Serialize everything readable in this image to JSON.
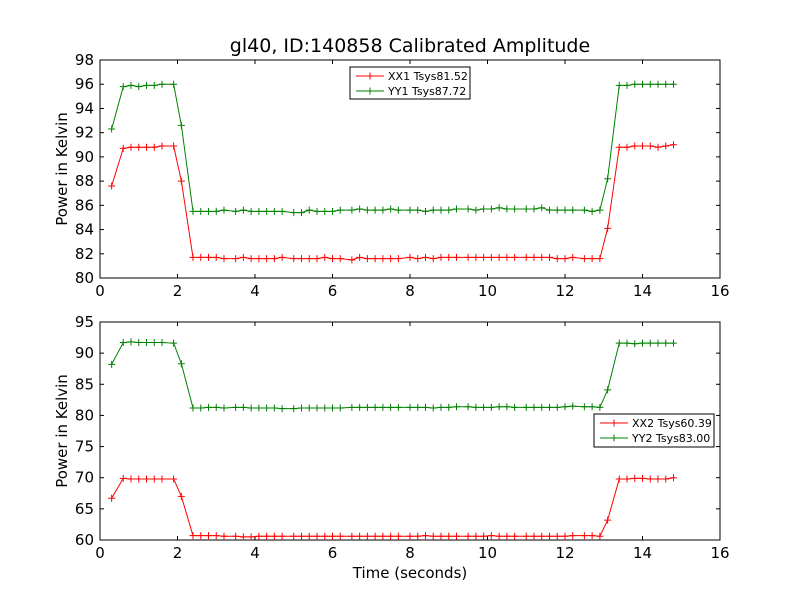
{
  "title": "gl40, ID:140858 Calibrated Amplitude",
  "chart_data": [
    {
      "type": "line",
      "ylabel": "Power in Kelvin",
      "xlabel": "",
      "xlim": [
        0,
        16
      ],
      "ylim": [
        80,
        98
      ],
      "xticks": [
        "0",
        "2",
        "4",
        "6",
        "8",
        "10",
        "12",
        "14",
        "16"
      ],
      "yticks": [
        "80",
        "82",
        "84",
        "86",
        "88",
        "90",
        "92",
        "94",
        "96",
        "98"
      ],
      "legend_position": "top-center",
      "x": [
        0.3,
        0.6,
        0.8,
        1.0,
        1.2,
        1.4,
        1.6,
        1.9,
        2.1,
        2.4,
        2.6,
        2.8,
        3.0,
        3.2,
        3.5,
        3.7,
        3.9,
        4.1,
        4.3,
        4.5,
        4.7,
        5.0,
        5.2,
        5.4,
        5.6,
        5.8,
        6.0,
        6.2,
        6.5,
        6.7,
        6.9,
        7.1,
        7.3,
        7.5,
        7.7,
        8.0,
        8.2,
        8.4,
        8.6,
        8.8,
        9.0,
        9.2,
        9.5,
        9.7,
        9.9,
        10.1,
        10.3,
        10.5,
        10.7,
        11.0,
        11.2,
        11.4,
        11.6,
        11.8,
        12.0,
        12.2,
        12.5,
        12.7,
        12.9,
        13.1,
        13.4,
        13.6,
        13.8,
        14.0,
        14.2,
        14.4,
        14.6,
        14.8
      ],
      "series": [
        {
          "name": "XX1 Tsys81.52",
          "color": "#ff0000",
          "values": [
            87.6,
            90.7,
            90.8,
            90.8,
            90.8,
            90.8,
            90.9,
            90.9,
            88.0,
            81.7,
            81.7,
            81.7,
            81.7,
            81.6,
            81.6,
            81.7,
            81.6,
            81.6,
            81.6,
            81.6,
            81.7,
            81.6,
            81.6,
            81.6,
            81.6,
            81.7,
            81.6,
            81.6,
            81.5,
            81.7,
            81.6,
            81.6,
            81.6,
            81.6,
            81.6,
            81.7,
            81.6,
            81.7,
            81.6,
            81.7,
            81.7,
            81.7,
            81.7,
            81.7,
            81.7,
            81.7,
            81.7,
            81.7,
            81.7,
            81.7,
            81.7,
            81.7,
            81.7,
            81.6,
            81.6,
            81.7,
            81.6,
            81.6,
            81.6,
            84.1,
            90.8,
            90.8,
            90.9,
            90.9,
            90.9,
            90.8,
            90.9,
            91.0
          ]
        },
        {
          "name": "YY1 Tsys87.72",
          "color": "#008000",
          "values": [
            92.3,
            95.8,
            95.9,
            95.8,
            95.9,
            95.9,
            96.0,
            96.0,
            92.6,
            85.5,
            85.5,
            85.5,
            85.5,
            85.6,
            85.5,
            85.6,
            85.5,
            85.5,
            85.5,
            85.5,
            85.5,
            85.4,
            85.4,
            85.6,
            85.5,
            85.5,
            85.5,
            85.6,
            85.6,
            85.7,
            85.6,
            85.6,
            85.6,
            85.7,
            85.6,
            85.6,
            85.6,
            85.5,
            85.6,
            85.6,
            85.6,
            85.7,
            85.7,
            85.6,
            85.7,
            85.7,
            85.8,
            85.7,
            85.7,
            85.7,
            85.7,
            85.8,
            85.6,
            85.6,
            85.6,
            85.6,
            85.6,
            85.5,
            85.6,
            88.2,
            95.9,
            95.9,
            96.0,
            96.0,
            96.0,
            96.0,
            96.0,
            96.0
          ]
        }
      ]
    },
    {
      "type": "line",
      "ylabel": "Power in Kelvin",
      "xlabel": "Time (seconds)",
      "xlim": [
        0,
        16
      ],
      "ylim": [
        60,
        95
      ],
      "xticks": [
        "0",
        "2",
        "4",
        "6",
        "8",
        "10",
        "12",
        "14",
        "16"
      ],
      "yticks": [
        "60",
        "65",
        "70",
        "75",
        "80",
        "85",
        "90",
        "95"
      ],
      "legend_position": "right",
      "x": [
        0.3,
        0.6,
        0.8,
        1.0,
        1.2,
        1.4,
        1.6,
        1.9,
        2.1,
        2.4,
        2.6,
        2.8,
        3.0,
        3.2,
        3.5,
        3.7,
        3.9,
        4.1,
        4.3,
        4.5,
        4.7,
        5.0,
        5.2,
        5.4,
        5.6,
        5.8,
        6.0,
        6.2,
        6.5,
        6.7,
        6.9,
        7.1,
        7.3,
        7.5,
        7.7,
        8.0,
        8.2,
        8.4,
        8.6,
        8.8,
        9.0,
        9.2,
        9.5,
        9.7,
        9.9,
        10.1,
        10.3,
        10.5,
        10.7,
        11.0,
        11.2,
        11.4,
        11.6,
        11.8,
        12.0,
        12.2,
        12.5,
        12.7,
        12.9,
        13.1,
        13.4,
        13.6,
        13.8,
        14.0,
        14.2,
        14.4,
        14.6,
        14.8
      ],
      "series": [
        {
          "name": "XX2 Tsys60.39",
          "color": "#ff0000",
          "values": [
            66.7,
            69.9,
            69.8,
            69.8,
            69.8,
            69.8,
            69.8,
            69.8,
            67.0,
            60.7,
            60.7,
            60.7,
            60.7,
            60.6,
            60.6,
            60.5,
            60.5,
            60.6,
            60.6,
            60.6,
            60.6,
            60.6,
            60.6,
            60.6,
            60.6,
            60.6,
            60.6,
            60.6,
            60.6,
            60.6,
            60.6,
            60.6,
            60.6,
            60.6,
            60.6,
            60.6,
            60.6,
            60.7,
            60.6,
            60.6,
            60.6,
            60.6,
            60.6,
            60.6,
            60.6,
            60.7,
            60.6,
            60.6,
            60.6,
            60.6,
            60.6,
            60.6,
            60.6,
            60.6,
            60.6,
            60.7,
            60.7,
            60.7,
            60.6,
            63.2,
            69.8,
            69.8,
            69.9,
            69.9,
            69.8,
            69.8,
            69.8,
            70.0
          ]
        },
        {
          "name": "YY2 Tsys83.00",
          "color": "#008000",
          "values": [
            88.2,
            91.7,
            91.8,
            91.7,
            91.7,
            91.7,
            91.7,
            91.6,
            88.3,
            81.2,
            81.2,
            81.3,
            81.3,
            81.2,
            81.3,
            81.3,
            81.2,
            81.2,
            81.2,
            81.2,
            81.1,
            81.1,
            81.2,
            81.2,
            81.2,
            81.2,
            81.2,
            81.2,
            81.3,
            81.3,
            81.3,
            81.3,
            81.3,
            81.3,
            81.3,
            81.3,
            81.3,
            81.3,
            81.2,
            81.3,
            81.3,
            81.4,
            81.4,
            81.3,
            81.3,
            81.3,
            81.4,
            81.4,
            81.3,
            81.3,
            81.3,
            81.3,
            81.3,
            81.3,
            81.4,
            81.5,
            81.4,
            81.4,
            81.3,
            84.1,
            91.6,
            91.6,
            91.5,
            91.6,
            91.6,
            91.6,
            91.6,
            91.6
          ]
        }
      ]
    }
  ]
}
